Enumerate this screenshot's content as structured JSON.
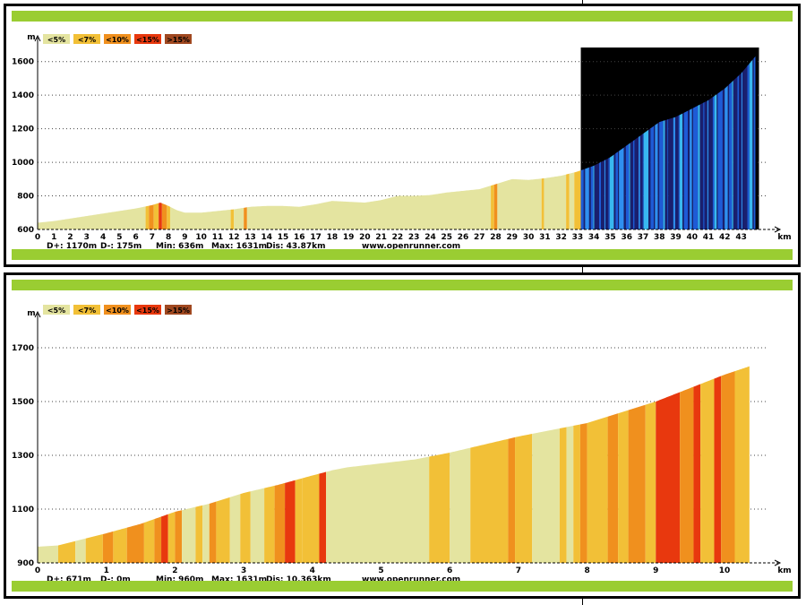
{
  "colors": {
    "lt5": "#E4E4A0",
    "lt7": "#F2C037",
    "lt10": "#F0901E",
    "lt15": "#E8380E",
    "gt15": "#A04820",
    "green_bar": "#9ACD32",
    "blue_palette": [
      "#1A1F6E",
      "#1E5BD6",
      "#2F8FF0",
      "#39B8F0"
    ]
  },
  "chart_data": [
    {
      "type": "area",
      "title": "",
      "xlabel": "km",
      "ylabel": "m",
      "xlim": [
        0,
        44.5
      ],
      "ylim": [
        600,
        1700
      ],
      "x_ticks": [
        0,
        1,
        2,
        3,
        4,
        5,
        6,
        7,
        8,
        9,
        10,
        11,
        12,
        13,
        14,
        15,
        16,
        17,
        18,
        19,
        20,
        21,
        22,
        23,
        24,
        25,
        26,
        27,
        28,
        29,
        30,
        31,
        32,
        33,
        34,
        35,
        36,
        37,
        38,
        39,
        40,
        41,
        42,
        43
      ],
      "y_ticks": [
        600,
        800,
        1000,
        1200,
        1400,
        1600
      ],
      "grid": "horizontal-dotted",
      "legend": [
        "<5%",
        "<7%",
        "<10%",
        "<15%",
        ">15%"
      ],
      "legend_position": "top-left",
      "stats": [
        "D+: 1170m",
        "D-: 175m",
        "Min: 636m",
        "Max: 1631m",
        "Dis: 43.87km"
      ],
      "watermark": "www.openrunner.com",
      "highlight_start_km": 33.2,
      "highlight_color": "#000000",
      "profile": [
        [
          0,
          640
        ],
        [
          1,
          650
        ],
        [
          2,
          665
        ],
        [
          3,
          680
        ],
        [
          4,
          695
        ],
        [
          5,
          710
        ],
        [
          6,
          725
        ],
        [
          7,
          745
        ],
        [
          7.5,
          760
        ],
        [
          8,
          740
        ],
        [
          8.5,
          715
        ],
        [
          9,
          700
        ],
        [
          10,
          700
        ],
        [
          11,
          710
        ],
        [
          12,
          720
        ],
        [
          13,
          735
        ],
        [
          14,
          740
        ],
        [
          15,
          740
        ],
        [
          16,
          735
        ],
        [
          17,
          750
        ],
        [
          18,
          770
        ],
        [
          19,
          765
        ],
        [
          20,
          760
        ],
        [
          21,
          775
        ],
        [
          22,
          800
        ],
        [
          23,
          800
        ],
        [
          24,
          805
        ],
        [
          25,
          820
        ],
        [
          26,
          830
        ],
        [
          27,
          840
        ],
        [
          28,
          870
        ],
        [
          29,
          900
        ],
        [
          30,
          895
        ],
        [
          31,
          905
        ],
        [
          32,
          920
        ],
        [
          33,
          945
        ],
        [
          34,
          980
        ],
        [
          35,
          1030
        ],
        [
          36,
          1100
        ],
        [
          37,
          1170
        ],
        [
          38,
          1240
        ],
        [
          39,
          1270
        ],
        [
          40,
          1320
        ],
        [
          41,
          1370
        ],
        [
          42,
          1440
        ],
        [
          43,
          1530
        ],
        [
          43.87,
          1631
        ]
      ],
      "segments": [
        {
          "from": 0,
          "to": 6.6,
          "grade": "lt5"
        },
        {
          "from": 6.6,
          "to": 6.8,
          "grade": "lt7"
        },
        {
          "from": 6.8,
          "to": 7.1,
          "grade": "lt10"
        },
        {
          "from": 7.1,
          "to": 7.4,
          "grade": "lt7"
        },
        {
          "from": 7.4,
          "to": 7.6,
          "grade": "lt15"
        },
        {
          "from": 7.6,
          "to": 7.9,
          "grade": "lt10"
        },
        {
          "from": 7.9,
          "to": 8.1,
          "grade": "lt7"
        },
        {
          "from": 8.1,
          "to": 11.8,
          "grade": "lt5"
        },
        {
          "from": 11.8,
          "to": 12.0,
          "grade": "lt7"
        },
        {
          "from": 12.0,
          "to": 12.6,
          "grade": "lt5"
        },
        {
          "from": 12.6,
          "to": 12.8,
          "grade": "lt10"
        },
        {
          "from": 12.8,
          "to": 27.7,
          "grade": "lt5"
        },
        {
          "from": 27.7,
          "to": 27.9,
          "grade": "lt7"
        },
        {
          "from": 27.9,
          "to": 28.1,
          "grade": "lt10"
        },
        {
          "from": 28.1,
          "to": 30.8,
          "grade": "lt5"
        },
        {
          "from": 30.8,
          "to": 30.95,
          "grade": "lt7"
        },
        {
          "from": 30.95,
          "to": 32.3,
          "grade": "lt5"
        },
        {
          "from": 32.3,
          "to": 32.5,
          "grade": "lt7"
        },
        {
          "from": 32.5,
          "to": 32.8,
          "grade": "lt5"
        },
        {
          "from": 32.8,
          "to": 33.2,
          "grade": "lt7"
        }
      ]
    },
    {
      "type": "area",
      "title": "",
      "xlabel": "km",
      "ylabel": "m",
      "xlim": [
        0,
        10.6
      ],
      "ylim": [
        900,
        1800
      ],
      "x_ticks": [
        0,
        1,
        2,
        3,
        4,
        5,
        6,
        7,
        8,
        9,
        10
      ],
      "y_ticks": [
        900,
        1100,
        1300,
        1500,
        1700
      ],
      "grid": "horizontal-dotted",
      "legend": [
        "<5%",
        "<7%",
        "<10%",
        "<15%",
        ">15%"
      ],
      "legend_position": "top-left",
      "stats": [
        "D+: 671m",
        "D-: 0m",
        "Min: 960m",
        "Max: 1631m",
        "Dis: 10.363km"
      ],
      "watermark": "www.openrunner.com",
      "profile": [
        [
          0,
          960
        ],
        [
          0.3,
          965
        ],
        [
          1,
          1010
        ],
        [
          1.5,
          1045
        ],
        [
          2,
          1090
        ],
        [
          2.5,
          1120
        ],
        [
          3,
          1160
        ],
        [
          3.5,
          1190
        ],
        [
          4,
          1225
        ],
        [
          4.3,
          1245
        ],
        [
          4.5,
          1255
        ],
        [
          5,
          1270
        ],
        [
          5.5,
          1285
        ],
        [
          5.8,
          1300
        ],
        [
          6,
          1310
        ],
        [
          6.5,
          1340
        ],
        [
          7,
          1370
        ],
        [
          7.5,
          1395
        ],
        [
          8,
          1420
        ],
        [
          8.5,
          1460
        ],
        [
          9,
          1500
        ],
        [
          9.5,
          1550
        ],
        [
          10,
          1600
        ],
        [
          10.363,
          1631
        ]
      ],
      "segments": [
        {
          "from": 0,
          "to": 0.3,
          "grade": "lt5"
        },
        {
          "from": 0.3,
          "to": 0.55,
          "grade": "lt7"
        },
        {
          "from": 0.55,
          "to": 0.7,
          "grade": "lt5"
        },
        {
          "from": 0.7,
          "to": 0.95,
          "grade": "lt7"
        },
        {
          "from": 0.95,
          "to": 1.1,
          "grade": "lt10"
        },
        {
          "from": 1.1,
          "to": 1.3,
          "grade": "lt7"
        },
        {
          "from": 1.3,
          "to": 1.55,
          "grade": "lt10"
        },
        {
          "from": 1.55,
          "to": 1.7,
          "grade": "lt7"
        },
        {
          "from": 1.7,
          "to": 1.8,
          "grade": "lt10"
        },
        {
          "from": 1.8,
          "to": 1.9,
          "grade": "lt15"
        },
        {
          "from": 1.9,
          "to": 2.0,
          "grade": "lt7"
        },
        {
          "from": 2.0,
          "to": 2.1,
          "grade": "lt10"
        },
        {
          "from": 2.1,
          "to": 2.3,
          "grade": "lt5"
        },
        {
          "from": 2.3,
          "to": 2.4,
          "grade": "lt7"
        },
        {
          "from": 2.4,
          "to": 2.5,
          "grade": "lt5"
        },
        {
          "from": 2.5,
          "to": 2.6,
          "grade": "lt10"
        },
        {
          "from": 2.6,
          "to": 2.8,
          "grade": "lt7"
        },
        {
          "from": 2.8,
          "to": 2.95,
          "grade": "lt5"
        },
        {
          "from": 2.95,
          "to": 3.1,
          "grade": "lt7"
        },
        {
          "from": 3.1,
          "to": 3.3,
          "grade": "lt5"
        },
        {
          "from": 3.3,
          "to": 3.45,
          "grade": "lt7"
        },
        {
          "from": 3.45,
          "to": 3.6,
          "grade": "lt10"
        },
        {
          "from": 3.6,
          "to": 3.75,
          "grade": "lt15"
        },
        {
          "from": 3.75,
          "to": 3.85,
          "grade": "lt7"
        },
        {
          "from": 3.85,
          "to": 4.1,
          "grade": "lt7"
        },
        {
          "from": 4.1,
          "to": 4.2,
          "grade": "lt15"
        },
        {
          "from": 4.2,
          "to": 5.7,
          "grade": "lt5"
        },
        {
          "from": 5.7,
          "to": 6.0,
          "grade": "lt7"
        },
        {
          "from": 6.0,
          "to": 6.3,
          "grade": "lt5"
        },
        {
          "from": 6.3,
          "to": 6.85,
          "grade": "lt7"
        },
        {
          "from": 6.85,
          "to": 6.95,
          "grade": "lt10"
        },
        {
          "from": 6.95,
          "to": 7.2,
          "grade": "lt7"
        },
        {
          "from": 7.2,
          "to": 7.6,
          "grade": "lt5"
        },
        {
          "from": 7.6,
          "to": 7.7,
          "grade": "lt7"
        },
        {
          "from": 7.7,
          "to": 7.8,
          "grade": "lt5"
        },
        {
          "from": 7.8,
          "to": 7.9,
          "grade": "lt7"
        },
        {
          "from": 7.9,
          "to": 8.0,
          "grade": "lt10"
        },
        {
          "from": 8.0,
          "to": 8.3,
          "grade": "lt7"
        },
        {
          "from": 8.3,
          "to": 8.45,
          "grade": "lt10"
        },
        {
          "from": 8.45,
          "to": 8.6,
          "grade": "lt7"
        },
        {
          "from": 8.6,
          "to": 8.85,
          "grade": "lt10"
        },
        {
          "from": 8.85,
          "to": 9.0,
          "grade": "lt7"
        },
        {
          "from": 9.0,
          "to": 9.35,
          "grade": "lt15"
        },
        {
          "from": 9.35,
          "to": 9.55,
          "grade": "lt10"
        },
        {
          "from": 9.55,
          "to": 9.65,
          "grade": "lt15"
        },
        {
          "from": 9.65,
          "to": 9.85,
          "grade": "lt7"
        },
        {
          "from": 9.85,
          "to": 9.95,
          "grade": "lt15"
        },
        {
          "from": 9.95,
          "to": 10.15,
          "grade": "lt10"
        },
        {
          "from": 10.15,
          "to": 10.363,
          "grade": "lt7"
        }
      ]
    }
  ]
}
